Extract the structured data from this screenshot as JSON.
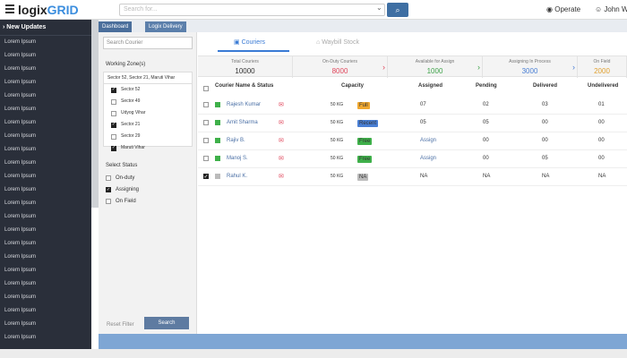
{
  "app": {
    "logo_main": "logix",
    "logo_accent": "GRID",
    "search_placeholder": "Search for...",
    "operate": "Operate",
    "user": "John Wi"
  },
  "sidebar": {
    "title": "New Updates",
    "items": [
      "Lorem Ipsum",
      "Lorem Ipsum",
      "Lorem Ipsum",
      "Lorem Ipsum",
      "Lorem Ipsum",
      "Lorem Ipsum",
      "Lorem Ipsum",
      "Lorem Ipsum",
      "Lorem Ipsum",
      "Lorem Ipsum",
      "Lorem Ipsum",
      "Lorem Ipsum",
      "Lorem Ipsum",
      "Lorem Ipsum",
      "Lorem Ipsum",
      "Lorem Ipsum",
      "Lorem Ipsum",
      "Lorem Ipsum",
      "Lorem Ipsum",
      "Lorem Ipsum",
      "Lorem Ipsum",
      "Lorem Ipsum",
      "Lorem Ipsum"
    ]
  },
  "breadcrumb": {
    "tab1": "Dashboard",
    "tab2": "Logix Delivery"
  },
  "filter": {
    "search_placeholder": "Search Courier",
    "zone_label": "Working Zone(s)",
    "zone_selected": "Sector 52, Sector 21, Maruti Vihar",
    "zones": [
      {
        "label": "Sector 52",
        "checked": true
      },
      {
        "label": "Sector 49",
        "checked": false
      },
      {
        "label": "Udyog Vihar",
        "checked": false
      },
      {
        "label": "Sector 21",
        "checked": true
      },
      {
        "label": "Sector 29",
        "checked": false
      },
      {
        "label": "Maruti Vihar",
        "checked": true
      }
    ],
    "status_label": "Select Status",
    "statuses": [
      {
        "label": "On-duty",
        "checked": false
      },
      {
        "label": "Assigning",
        "checked": true
      },
      {
        "label": "On Field",
        "checked": false
      }
    ],
    "reset": "Reset Filter",
    "search_button": "Search"
  },
  "main": {
    "tab_couriers": "Couriers",
    "tab_waybill": "Waybill Stock",
    "stats": [
      {
        "label": "Total Couriers",
        "value": "10000",
        "color": "#333333",
        "arrow": ""
      },
      {
        "label": "On-Duty Couriers",
        "value": "8000",
        "color": "#e0475c",
        "arrow": "›"
      },
      {
        "label": "Available for Assign",
        "value": "1000",
        "color": "#3fa24a",
        "arrow": "›"
      },
      {
        "label": "Assigning In Process",
        "value": "3000",
        "color": "#4a7fd4",
        "arrow": "›"
      },
      {
        "label": "On Field",
        "value": "2000",
        "color": "#e0a030",
        "arrow": ""
      }
    ],
    "columns": {
      "name": "Courier Name & Status",
      "capacity": "Capacity",
      "assigned": "Assigned",
      "pending": "Pending",
      "delivered": "Delivered",
      "undelivered": "Undelivered"
    },
    "rows": [
      {
        "name": "Rajesh Kumar",
        "status_color": "#3fb04a",
        "checked": false,
        "capacity": "50 KG",
        "badge": "Full",
        "badge_color": "#f0a830",
        "assigned": "07",
        "pending": "02",
        "delivered": "03",
        "undelivered": "01",
        "assigned_link": false
      },
      {
        "name": "Amit Sharma",
        "status_color": "#3fb04a",
        "checked": false,
        "capacity": "50 KG",
        "badge": "Recent",
        "badge_color": "#4a7fd4",
        "assigned": "05",
        "pending": "05",
        "delivered": "00",
        "undelivered": "00",
        "assigned_link": false
      },
      {
        "name": "Rajiv B.",
        "status_color": "#3fb04a",
        "checked": false,
        "capacity": "50 KG",
        "badge": "Free",
        "badge_color": "#3fb04a",
        "assigned": "Assign",
        "pending": "00",
        "delivered": "00",
        "undelivered": "00",
        "assigned_link": true
      },
      {
        "name": "Manoj S.",
        "status_color": "#3fb04a",
        "checked": false,
        "capacity": "50 KG",
        "badge": "Free",
        "badge_color": "#3fb04a",
        "assigned": "Assign",
        "pending": "00",
        "delivered": "05",
        "undelivered": "00",
        "assigned_link": true
      },
      {
        "name": "Rahul K.",
        "status_color": "#bbbbbb",
        "checked": true,
        "capacity": "50 KG",
        "badge": "NA",
        "badge_color": "#bbbbbb",
        "assigned": "NA",
        "pending": "NA",
        "delivered": "NA",
        "undelivered": "NA",
        "assigned_link": false
      }
    ]
  }
}
